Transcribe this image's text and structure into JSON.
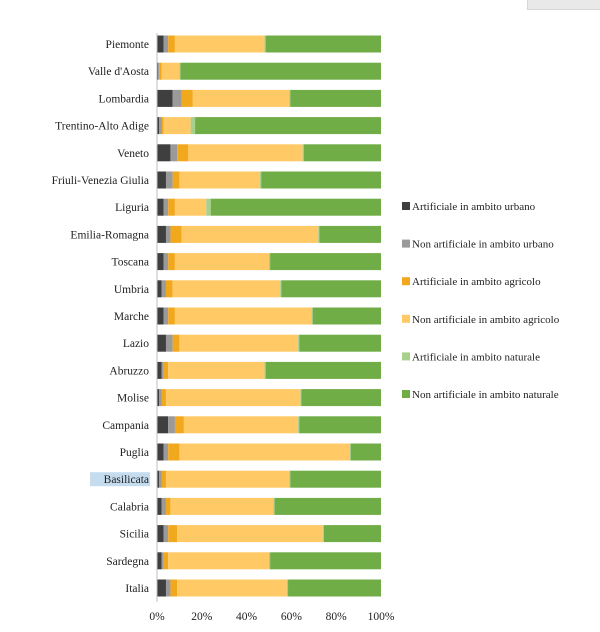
{
  "chart_data": {
    "type": "bar",
    "orientation": "horizontal",
    "stacked": true,
    "categories": [
      "Piemonte",
      "Valle d'Aosta",
      "Lombardia",
      "Trentino-Alto Adige",
      "Veneto",
      "Friuli-Venezia Giulia",
      "Liguria",
      "Emilia-Romagna",
      "Toscana",
      "Umbria",
      "Marche",
      "Lazio",
      "Abruzzo",
      "Molise",
      "Campania",
      "Puglia",
      "Basilicata",
      "Calabria",
      "Sicilia",
      "Sardegna",
      "Italia"
    ],
    "highlighted_category": "Basilicata",
    "highlight_color": "#c5dcef",
    "series": [
      {
        "name": "Artificiale in ambito urbano",
        "color": "#3f3f3f",
        "values": [
          3,
          0.5,
          7,
          1,
          6,
          4,
          3,
          4,
          3,
          2,
          3,
          4,
          2,
          1,
          5,
          3,
          1,
          2,
          3,
          2,
          4
        ]
      },
      {
        "name": "Non artificiale in ambito urbano",
        "color": "#9a9a9a",
        "values": [
          2,
          0.5,
          4,
          1,
          3,
          3,
          2,
          2,
          2,
          2,
          2,
          3,
          1,
          1,
          3,
          2,
          1,
          2,
          2,
          1,
          2
        ]
      },
      {
        "name": "Artificiale in ambito agricolo",
        "color": "#f2a81d",
        "values": [
          3,
          1,
          5,
          1,
          5,
          3,
          3,
          5,
          3,
          3,
          3,
          3,
          2,
          2,
          4,
          5,
          2,
          2,
          4,
          2,
          3
        ]
      },
      {
        "name": "Non artificiale in ambito agricolo",
        "color": "#ffc966",
        "values": [
          40,
          8,
          43,
          12,
          51,
          36,
          14,
          61,
          42,
          48,
          61,
          53,
          43,
          60,
          51,
          76,
          55,
          46,
          65,
          45,
          49
        ]
      },
      {
        "name": "Artificiale in ambito naturale",
        "color": "#a8d08d",
        "values": [
          0.5,
          0.5,
          0.5,
          2,
          0.5,
          0.5,
          2,
          0.5,
          0.5,
          0.5,
          0.5,
          0.5,
          0.5,
          0.5,
          0.5,
          0.5,
          0.5,
          0.5,
          0.5,
          0.5,
          0.5
        ]
      },
      {
        "name": "Non artificiale in ambito naturale",
        "color": "#70ad47",
        "values": [
          51.5,
          89.5,
          40.5,
          83,
          34.5,
          53.5,
          76,
          27.5,
          49.5,
          44.5,
          30.5,
          36.5,
          51.5,
          35.5,
          36.5,
          13.5,
          40.5,
          47.5,
          25.5,
          49.5,
          41.5
        ]
      }
    ],
    "xlim": [
      0,
      100
    ],
    "xticks": [
      0,
      20,
      40,
      60,
      80,
      100
    ],
    "tick_suffix": "%",
    "grid": false,
    "legend_position": "right"
  }
}
